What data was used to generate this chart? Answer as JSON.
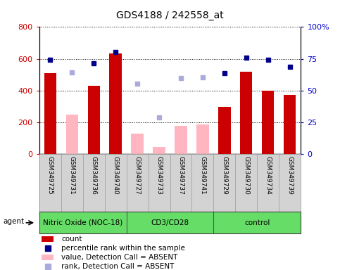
{
  "title": "GDS4188 / 242558_at",
  "samples": [
    "GSM349725",
    "GSM349731",
    "GSM349736",
    "GSM349740",
    "GSM349727",
    "GSM349733",
    "GSM349737",
    "GSM349741",
    "GSM349729",
    "GSM349730",
    "GSM349734",
    "GSM349739"
  ],
  "groups": [
    {
      "label": "Nitric Oxide (NOC-18)",
      "start": 0,
      "end": 3
    },
    {
      "label": "CD3/CD28",
      "start": 4,
      "end": 7
    },
    {
      "label": "control",
      "start": 8,
      "end": 11
    }
  ],
  "count_values": [
    510,
    null,
    430,
    635,
    null,
    null,
    null,
    null,
    295,
    520,
    400,
    370
  ],
  "absent_bar_values": [
    null,
    248,
    null,
    null,
    130,
    45,
    175,
    185,
    null,
    null,
    null,
    null
  ],
  "percentile_rank": [
    595,
    null,
    570,
    640,
    null,
    null,
    null,
    null,
    510,
    605,
    593,
    548
  ],
  "absent_rank_values": [
    null,
    515,
    null,
    null,
    443,
    228,
    478,
    483,
    null,
    null,
    null,
    null
  ],
  "ylim_left": [
    0,
    800
  ],
  "yticks_left": [
    0,
    200,
    400,
    600,
    800
  ],
  "yticks_right": [
    0,
    25,
    50,
    75,
    100
  ],
  "ytick_labels_right": [
    "0",
    "25",
    "50",
    "75",
    "100%"
  ],
  "bar_width": 0.55,
  "count_color": "#cc0000",
  "absent_bar_color": "#ffb6c1",
  "rank_color": "#00008B",
  "absent_rank_color": "#aaaadd",
  "tick_label_color_left": "#cc0000",
  "tick_label_color_right": "#0000cc",
  "label_area_color": "#d3d3d3",
  "group_area_color": "#66dd66",
  "legend_items": [
    {
      "label": "count",
      "color": "#cc0000",
      "type": "bar"
    },
    {
      "label": "percentile rank within the sample",
      "color": "#00008B",
      "type": "square"
    },
    {
      "label": "value, Detection Call = ABSENT",
      "color": "#ffb6c1",
      "type": "bar"
    },
    {
      "label": "rank, Detection Call = ABSENT",
      "color": "#aaaadd",
      "type": "square"
    }
  ]
}
